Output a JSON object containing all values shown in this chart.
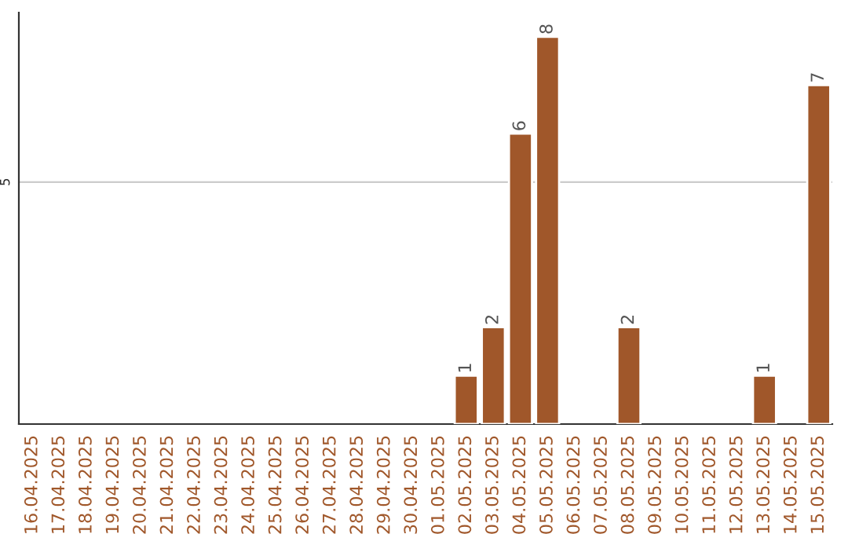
{
  "chart_data": {
    "type": "bar",
    "categories": [
      "16.04.2025",
      "17.04.2025",
      "18.04.2025",
      "19.04.2025",
      "20.04.2025",
      "21.04.2025",
      "22.04.2025",
      "23.04.2025",
      "24.04.2025",
      "25.04.2025",
      "26.04.2025",
      "27.04.2025",
      "28.04.2025",
      "29.04.2025",
      "30.04.2025",
      "01.05.2025",
      "02.05.2025",
      "03.05.2025",
      "04.05.2025",
      "05.05.2025",
      "06.05.2025",
      "07.05.2025",
      "08.05.2025",
      "09.05.2025",
      "10.05.2025",
      "11.05.2025",
      "12.05.2025",
      "13.05.2025",
      "14.05.2025",
      "15.05.2025"
    ],
    "values": [
      null,
      null,
      null,
      null,
      null,
      null,
      null,
      null,
      null,
      null,
      null,
      null,
      null,
      null,
      null,
      null,
      1,
      2,
      6,
      8,
      null,
      null,
      2,
      null,
      null,
      null,
      null,
      1,
      null,
      7
    ],
    "color": "#a0572a",
    "ylim": [
      0,
      8.5
    ],
    "data_labels": true,
    "ref_lines": [
      {
        "axis": "y",
        "value": 5,
        "label": "5",
        "color": "#cccccc"
      }
    ]
  }
}
